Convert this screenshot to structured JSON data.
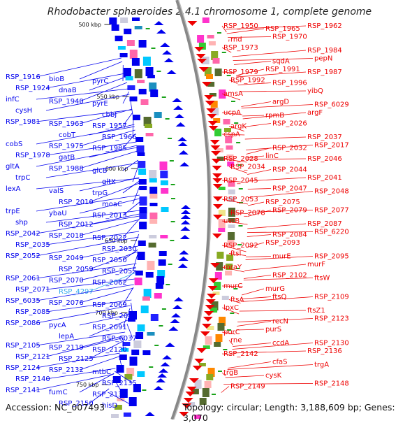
{
  "title": "Rhodobacter sphaeroides 2.4.1 chromosome 1, complete genome",
  "footer": {
    "accession": "Accession: NC_007493",
    "summary": "Topology: circular; Length: 3,188,609 bp; Genes: 3,070"
  },
  "colors": {
    "reverse": "#0000ee",
    "forward": "#ee0000",
    "highlight": "#33aaee",
    "backbone": "#999999"
  },
  "scale_labels": [
    "500 kbp",
    "550 kbp",
    "600 kbp",
    "650 kbp",
    "700 kbp",
    "750 kbp"
  ],
  "left_labels": [
    "RSP_1916",
    "bioB",
    "pyrC",
    "RSP_1924",
    "dnaB",
    "pyrE",
    "infC",
    "RSP_1940",
    "cbbJ",
    "cysH",
    "RSP_1963",
    "RSP_1957",
    "RSP_1981",
    "cobT",
    "RSP_1966",
    "cobS",
    "RSP_1975",
    "RSP_1985",
    "RSP_1978",
    "gatB",
    "glcB",
    "gltA",
    "RSP_1988",
    "gltX",
    "trpC",
    "valS",
    "trpG",
    "lexA",
    "RSP_2010",
    "moaC",
    "trpE",
    "ybaU",
    "RSP_2013",
    "shp",
    "RSP_2012",
    "RSP_2022",
    "RSP_2042",
    "RSP_2018",
    "RSP_2030",
    "RSP_2035",
    "RSP_2049",
    "RSP_2050",
    "RSP_2052",
    "RSP_2059",
    "RSP_2055",
    "RSP_2061",
    "RSP_2070",
    "RSP_2062",
    "RSP_2071",
    "RSP_4297",
    "RSP_2069",
    "RSP_6035",
    "RSP_2076",
    "RSP_2082",
    "RSP_2085",
    "pycA",
    "RSP_2091",
    "RSP_2086",
    "lepA",
    "RSP_6037",
    "RSP_2105",
    "RSP_2119",
    "RSP_2120",
    "RSP_2121",
    "RSP_2125",
    "mtbC",
    "RSP_2124",
    "RSP_2132",
    "RSP_2135",
    "RSP_2140",
    "fumC",
    "RSP_2137",
    "RSP_2141",
    "RSP_2150",
    "hisD"
  ],
  "right_labels": [
    "RSP_1950",
    "RSP_1965",
    "RSP_1962",
    "rnd",
    "RSP_1970",
    "RSP_1984",
    "RSP_1973",
    "sqdA",
    "pepN",
    "RSP_1979",
    "RSP_1991",
    "RSP_1987",
    "RSP_1992",
    "RSP_1996",
    "yibQ",
    "amsA",
    "argD",
    "RSP_6029",
    "ucpA",
    "rpmB",
    "argF",
    "argK",
    "RSP_2026",
    "RSP_2037",
    "cspA",
    "RSP_2032",
    "RSP_2017",
    "RSP_2028",
    "linC",
    "RSP_2046",
    "RSP_2034",
    "RSP_2044",
    "RSP_2041",
    "RSP_2045",
    "RSP_2047",
    "RSP_2048",
    "RSP_2053",
    "RSP_2075",
    "RSP_2077",
    "RSP_2078",
    "RSP_2079",
    "RSP_2087",
    "uvrB",
    "RSP_2084",
    "RSP_6220",
    "RSP_2092",
    "RSP_2093",
    "RSP_2095",
    "ftsI",
    "murE",
    "murF",
    "mraY",
    "RSP_2102",
    "ftsW",
    "murC",
    "murG",
    "RSP_2109",
    "ftsA",
    "ftsQ",
    "ftsZ1",
    "lpxC",
    "recN",
    "RSP_2123",
    "purC",
    "purS",
    "RSP_2130",
    "rne",
    "ccdA",
    "RSP_2136",
    "RSP_2142",
    "cfaS",
    "trgA",
    "trgB",
    "cysK",
    "RSP_2148",
    "RSP_2149"
  ]
}
